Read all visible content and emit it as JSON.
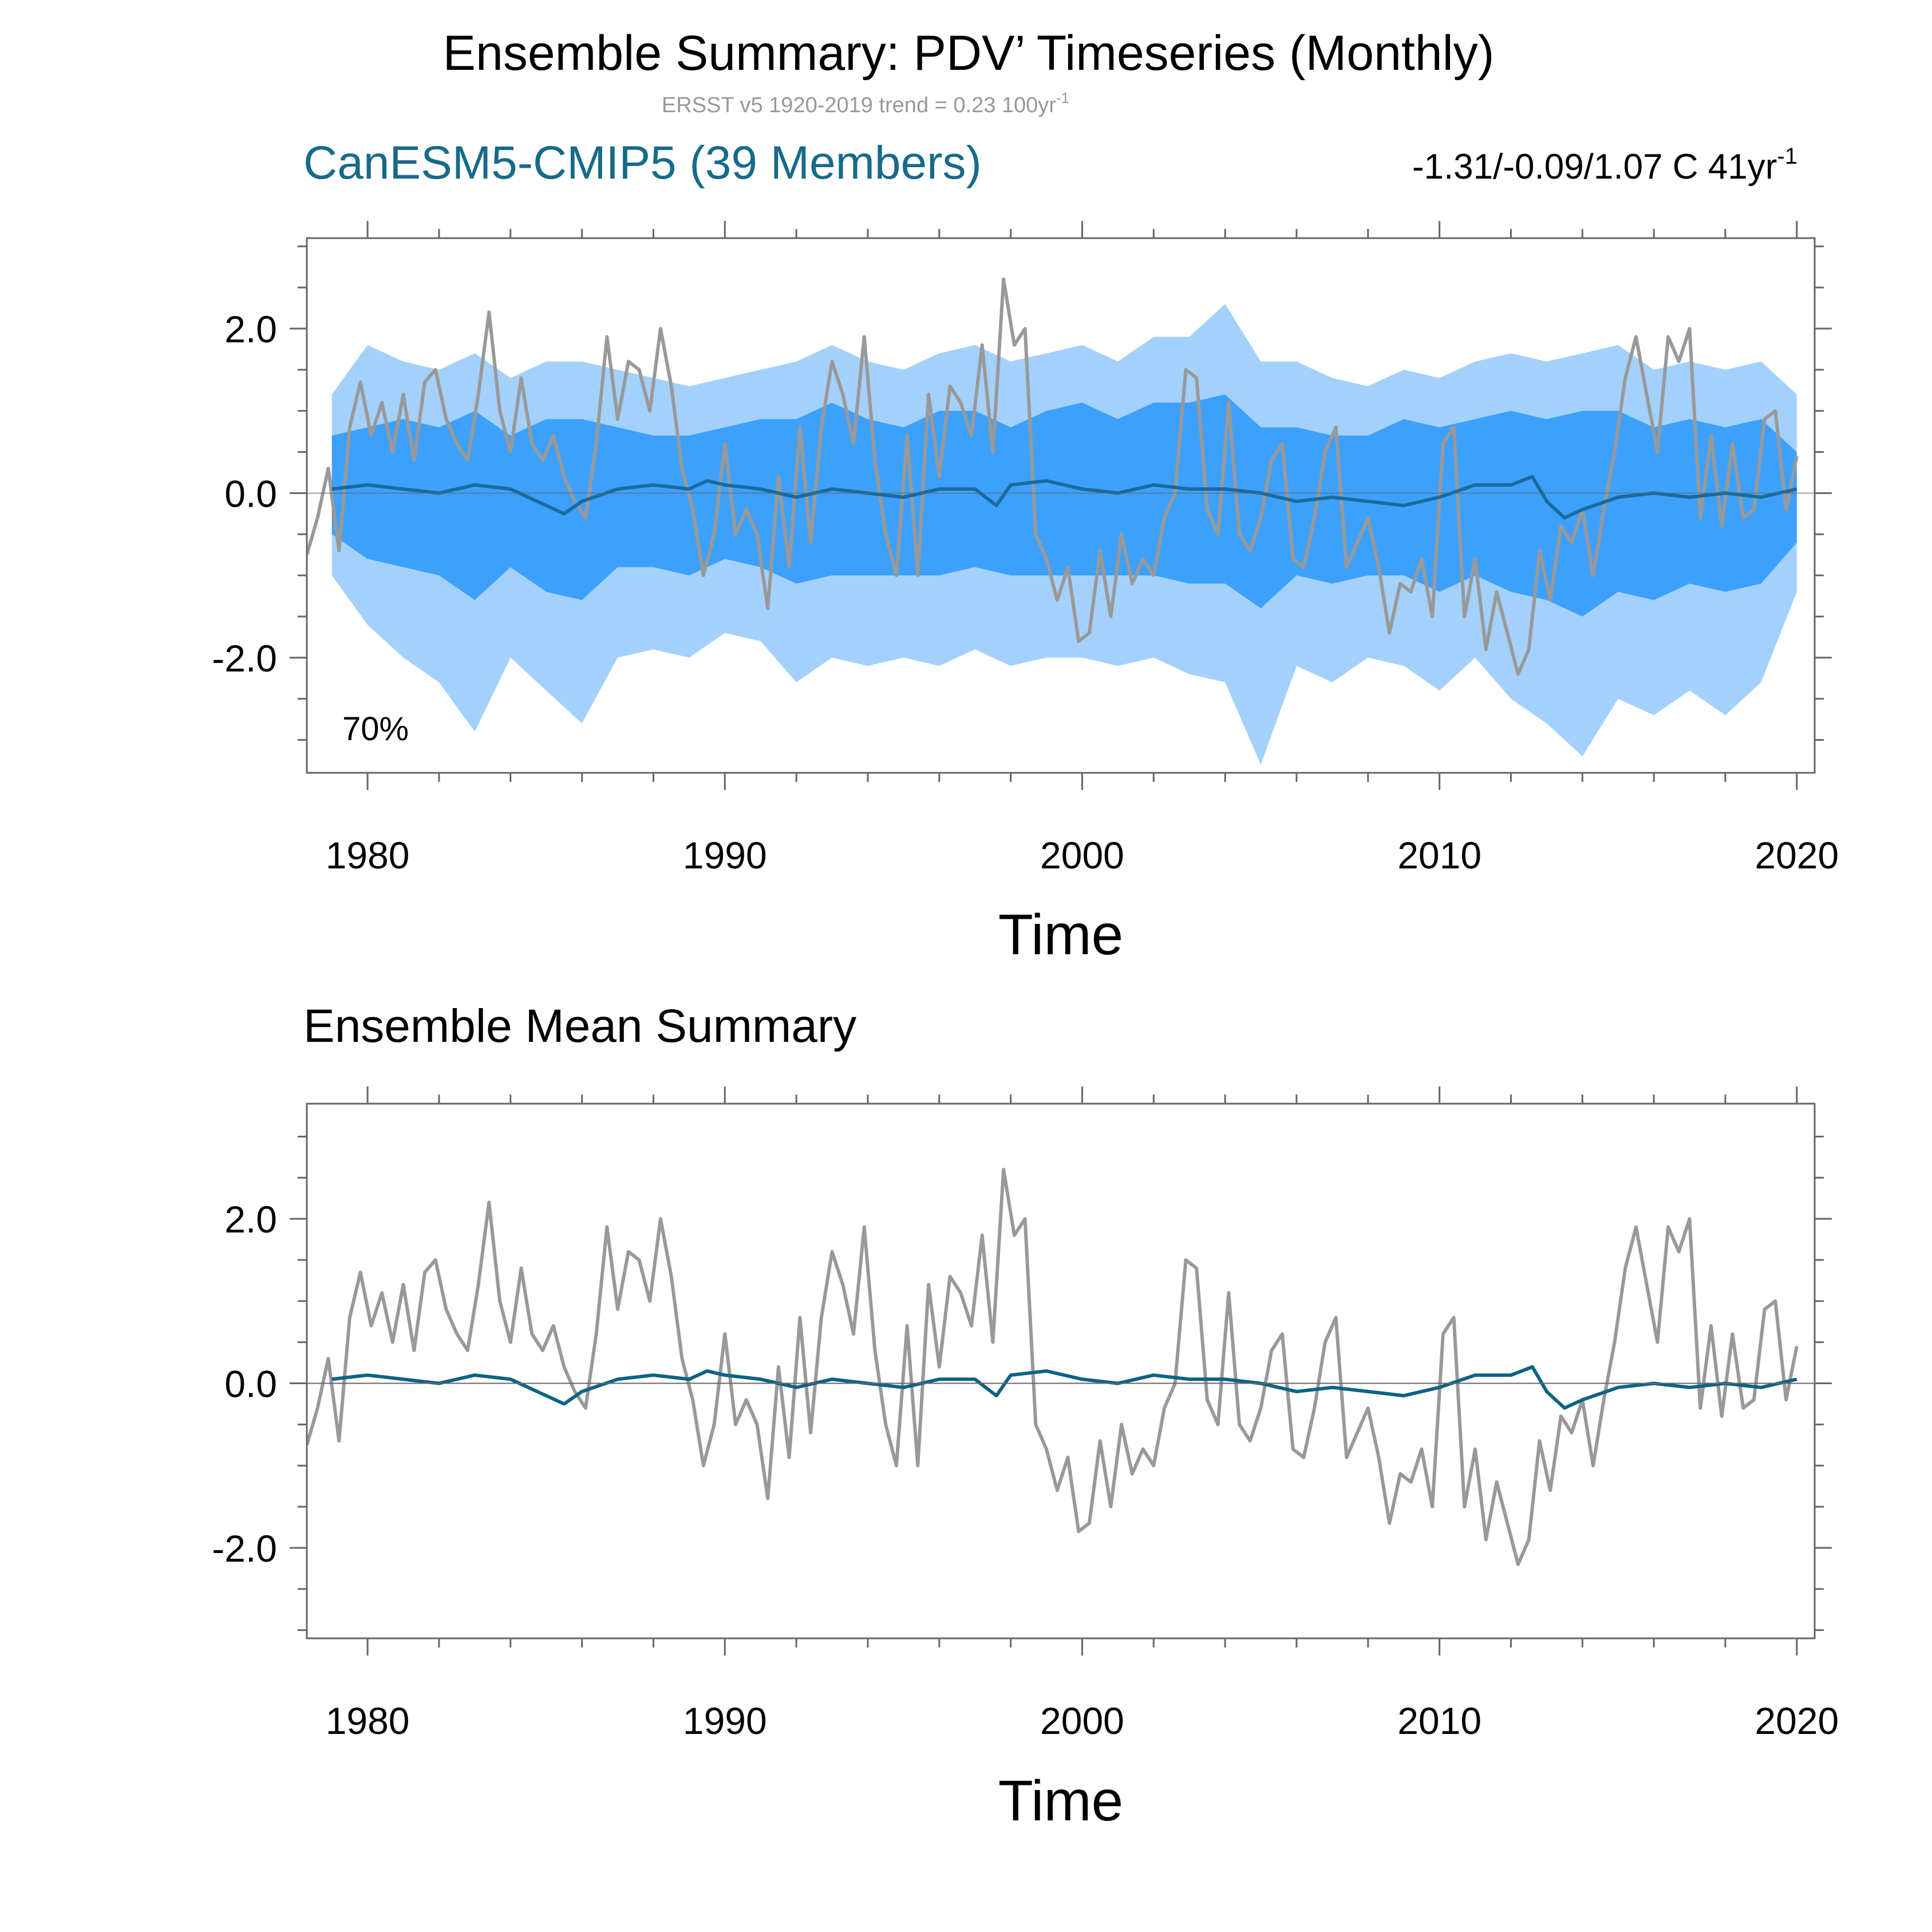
{
  "figure": {
    "main_title": "Ensemble Summary: PDV’ Timeseries (Monthly)",
    "subtitle_prefix": "ERSST v5 1920-2019 trend = 0.23 100yr",
    "subtitle_superscript": "-1"
  },
  "colors": {
    "observed_line": "#999999",
    "ensemble_mean_line": "#1a6b9e",
    "ensemble_mean_summary_line": "#0d6383",
    "band_outer": "#a3d1fb",
    "band_inner": "#3da1fb",
    "model_title": "#176a8a",
    "axis": "#666666",
    "text": "#000000",
    "subtitle": "#999999"
  },
  "chart_data": [
    {
      "type": "area",
      "panel": "top",
      "title": "CanESM5-CMIP5 (39 Members)",
      "trend_text_prefix": "-1.31/-0.09/1.07 C 41yr",
      "trend_text_superscript": "-1",
      "annotation": "70%",
      "xlabel": "Time",
      "ylabel": "",
      "xlim": [
        1978.3,
        2020.5
      ],
      "ylim": [
        -3.4,
        3.1
      ],
      "x_ticks": [
        1980,
        1990,
        2000,
        2010,
        2020
      ],
      "x_tick_labels": [
        "1980",
        "1990",
        "2000",
        "2010",
        "2020"
      ],
      "y_ticks": [
        -2.0,
        0.0,
        2.0
      ],
      "y_tick_labels": [
        "-2.0",
        "0.0",
        "2.0"
      ],
      "series": [
        {
          "name": "observed_ersst",
          "style": "line"
        },
        {
          "name": "ensemble_mean",
          "style": "line"
        },
        {
          "name": "ensemble_full_range",
          "style": "band"
        },
        {
          "name": "ensemble_70pct_range",
          "style": "band"
        }
      ]
    },
    {
      "type": "line",
      "panel": "bottom",
      "title": "Ensemble Mean Summary",
      "xlabel": "Time",
      "ylabel": "",
      "xlim": [
        1978.3,
        2020.5
      ],
      "ylim": [
        -3.1,
        3.4
      ],
      "x_ticks": [
        1980,
        1990,
        2000,
        2010,
        2020
      ],
      "x_tick_labels": [
        "1980",
        "1990",
        "2000",
        "2010",
        "2020"
      ],
      "y_ticks": [
        -2.0,
        0.0,
        2.0
      ],
      "y_tick_labels": [
        "-2.0",
        "0.0",
        "2.0"
      ],
      "series": [
        {
          "name": "observed_ersst",
          "style": "line"
        },
        {
          "name": "ensemble_mean",
          "style": "line"
        }
      ]
    }
  ],
  "series_data": {
    "observed_ersst": {
      "x": [
        1978.3,
        1978.6,
        1978.9,
        1979.2,
        1979.5,
        1979.8,
        1980.1,
        1980.4,
        1980.7,
        1981.0,
        1981.3,
        1981.6,
        1981.9,
        1982.2,
        1982.5,
        1982.8,
        1983.1,
        1983.4,
        1983.7,
        1984.0,
        1984.3,
        1984.6,
        1984.9,
        1985.2,
        1985.5,
        1985.8,
        1986.1,
        1986.4,
        1986.7,
        1987.0,
        1987.3,
        1987.6,
        1987.9,
        1988.2,
        1988.5,
        1988.8,
        1989.1,
        1989.4,
        1989.7,
        1990.0,
        1990.3,
        1990.6,
        1990.9,
        1991.2,
        1991.5,
        1991.8,
        1992.1,
        1992.4,
        1992.7,
        1993.0,
        1993.3,
        1993.6,
        1993.9,
        1994.2,
        1994.5,
        1994.8,
        1995.1,
        1995.4,
        1995.7,
        1996.0,
        1996.3,
        1996.6,
        1996.9,
        1997.2,
        1997.5,
        1997.8,
        1998.1,
        1998.4,
        1998.7,
        1999.0,
        1999.3,
        1999.6,
        1999.9,
        2000.2,
        2000.5,
        2000.8,
        2001.1,
        2001.4,
        2001.7,
        2002.0,
        2002.3,
        2002.6,
        2002.9,
        2003.2,
        2003.5,
        2003.8,
        2004.1,
        2004.4,
        2004.7,
        2005.0,
        2005.3,
        2005.6,
        2005.9,
        2006.2,
        2006.5,
        2006.8,
        2007.1,
        2007.4,
        2007.7,
        2008.0,
        2008.3,
        2008.6,
        2008.9,
        2009.2,
        2009.5,
        2009.8,
        2010.1,
        2010.4,
        2010.7,
        2011.0,
        2011.3,
        2011.6,
        2011.9,
        2012.2,
        2012.5,
        2012.8,
        2013.1,
        2013.4,
        2013.7,
        2014.0,
        2014.3,
        2014.6,
        2014.9,
        2015.2,
        2015.5,
        2015.8,
        2016.1,
        2016.4,
        2016.7,
        2017.0,
        2017.3,
        2017.6,
        2017.9,
        2018.2,
        2018.5,
        2018.8,
        2019.1,
        2019.4,
        2019.7,
        2020.0
      ],
      "y": [
        -0.75,
        -0.3,
        0.3,
        -0.7,
        0.8,
        1.35,
        0.7,
        1.1,
        0.5,
        1.2,
        0.4,
        1.35,
        1.5,
        0.9,
        0.6,
        0.4,
        1.2,
        2.2,
        1.0,
        0.5,
        1.4,
        0.6,
        0.4,
        0.7,
        0.2,
        -0.1,
        -0.3,
        0.6,
        1.9,
        0.9,
        1.6,
        1.5,
        1.0,
        2.0,
        1.3,
        0.3,
        -0.2,
        -1.0,
        -0.5,
        0.6,
        -0.5,
        -0.2,
        -0.5,
        -1.4,
        0.2,
        -0.9,
        0.8,
        -0.6,
        0.8,
        1.6,
        1.2,
        0.6,
        1.9,
        0.4,
        -0.5,
        -1.0,
        0.7,
        -1.0,
        1.2,
        0.2,
        1.3,
        1.1,
        0.7,
        1.8,
        0.5,
        2.6,
        1.8,
        2.0,
        -0.5,
        -0.8,
        -1.3,
        -0.9,
        -1.8,
        -1.7,
        -0.7,
        -1.5,
        -0.5,
        -1.1,
        -0.8,
        -1.0,
        -0.3,
        0.0,
        1.5,
        1.4,
        -0.2,
        -0.5,
        1.1,
        -0.5,
        -0.7,
        -0.3,
        0.4,
        0.6,
        -0.8,
        -0.9,
        -0.3,
        0.5,
        0.8,
        -0.9,
        -0.6,
        -0.3,
        -0.9,
        -1.7,
        -1.1,
        -1.2,
        -0.8,
        -1.5,
        0.6,
        0.8,
        -1.5,
        -0.8,
        -1.9,
        -1.2,
        -1.7,
        -2.2,
        -1.9,
        -0.7,
        -1.3,
        -0.4,
        -0.6,
        -0.2,
        -1.0,
        -0.2,
        0.5,
        1.4,
        1.9,
        1.2,
        0.5,
        1.9,
        1.6,
        2.0,
        -0.3,
        0.7,
        -0.4,
        0.6,
        -0.3,
        -0.2,
        0.9,
        1.0,
        -0.2,
        0.45
      ],
      "description_note": "approximate monthly values at ~0.3 yr spacing"
    },
    "ensemble_mean": {
      "x": [
        1979.0,
        1980.0,
        1981.0,
        1982.0,
        1983.0,
        1984.0,
        1985.0,
        1985.5,
        1986.0,
        1987.0,
        1988.0,
        1989.0,
        1989.5,
        1990.0,
        1991.0,
        1992.0,
        1993.0,
        1994.0,
        1995.0,
        1996.0,
        1997.0,
        1997.6,
        1998.0,
        1999.0,
        2000.0,
        2001.0,
        2002.0,
        2003.0,
        2004.0,
        2005.0,
        2006.0,
        2007.0,
        2008.0,
        2009.0,
        2010.0,
        2011.0,
        2012.0,
        2012.6,
        2013.0,
        2013.5,
        2014.0,
        2015.0,
        2016.0,
        2017.0,
        2018.0,
        2019.0,
        2020.0
      ],
      "y": [
        0.05,
        0.1,
        0.05,
        0.0,
        0.1,
        0.05,
        -0.15,
        -0.25,
        -0.1,
        0.05,
        0.1,
        0.05,
        0.15,
        0.1,
        0.05,
        -0.05,
        0.05,
        0.0,
        -0.05,
        0.05,
        0.05,
        -0.15,
        0.1,
        0.15,
        0.05,
        0.0,
        0.1,
        0.05,
        0.05,
        0.0,
        -0.1,
        -0.05,
        -0.1,
        -0.15,
        -0.05,
        0.1,
        0.1,
        0.2,
        -0.1,
        -0.3,
        -0.2,
        -0.05,
        0.0,
        -0.05,
        0.0,
        -0.05,
        0.05
      ]
    },
    "ensemble_full_range": {
      "x": [
        1979.0,
        1980.0,
        1981.0,
        1982.0,
        1983.0,
        1984.0,
        1985.0,
        1986.0,
        1987.0,
        1988.0,
        1989.0,
        1990.0,
        1991.0,
        1992.0,
        1993.0,
        1994.0,
        1995.0,
        1996.0,
        1997.0,
        1998.0,
        1999.0,
        2000.0,
        2001.0,
        2002.0,
        2003.0,
        2004.0,
        2005.0,
        2006.0,
        2007.0,
        2008.0,
        2009.0,
        2010.0,
        2011.0,
        2012.0,
        2013.0,
        2014.0,
        2015.0,
        2016.0,
        2017.0,
        2018.0,
        2019.0,
        2020.0
      ],
      "upper": [
        1.2,
        1.8,
        1.6,
        1.5,
        1.7,
        1.4,
        1.6,
        1.6,
        1.5,
        1.4,
        1.3,
        1.4,
        1.5,
        1.6,
        1.8,
        1.6,
        1.5,
        1.7,
        1.8,
        1.6,
        1.7,
        1.8,
        1.6,
        1.9,
        1.9,
        2.3,
        1.6,
        1.6,
        1.4,
        1.3,
        1.5,
        1.4,
        1.6,
        1.7,
        1.6,
        1.7,
        1.8,
        1.5,
        1.6,
        1.5,
        1.6,
        1.2
      ],
      "lower": [
        -1.0,
        -1.6,
        -2.0,
        -2.3,
        -2.9,
        -2.0,
        -2.4,
        -2.8,
        -2.0,
        -1.9,
        -2.0,
        -1.7,
        -1.8,
        -2.3,
        -2.0,
        -2.1,
        -2.0,
        -2.1,
        -1.9,
        -2.1,
        -2.0,
        -2.0,
        -2.1,
        -2.0,
        -2.2,
        -2.3,
        -3.3,
        -2.1,
        -2.3,
        -2.0,
        -2.1,
        -2.4,
        -2.0,
        -2.5,
        -2.8,
        -3.2,
        -2.5,
        -2.7,
        -2.4,
        -2.7,
        -2.3,
        -1.2
      ]
    },
    "ensemble_70pct_range": {
      "x": [
        1979.0,
        1980.0,
        1981.0,
        1982.0,
        1983.0,
        1984.0,
        1985.0,
        1986.0,
        1987.0,
        1988.0,
        1989.0,
        1990.0,
        1991.0,
        1992.0,
        1993.0,
        1994.0,
        1995.0,
        1996.0,
        1997.0,
        1998.0,
        1999.0,
        2000.0,
        2001.0,
        2002.0,
        2003.0,
        2004.0,
        2005.0,
        2006.0,
        2007.0,
        2008.0,
        2009.0,
        2010.0,
        2011.0,
        2012.0,
        2013.0,
        2014.0,
        2015.0,
        2016.0,
        2017.0,
        2018.0,
        2019.0,
        2020.0
      ],
      "upper": [
        0.7,
        0.8,
        0.9,
        0.8,
        1.0,
        0.7,
        0.9,
        0.9,
        0.8,
        0.7,
        0.7,
        0.8,
        0.9,
        0.9,
        1.1,
        0.9,
        0.8,
        1.0,
        1.0,
        0.8,
        1.0,
        1.1,
        0.9,
        1.1,
        1.1,
        1.2,
        0.8,
        0.8,
        0.7,
        0.7,
        0.9,
        0.8,
        0.9,
        1.0,
        0.9,
        1.0,
        1.0,
        0.8,
        0.9,
        0.8,
        0.9,
        0.5
      ],
      "lower": [
        -0.5,
        -0.8,
        -0.9,
        -1.0,
        -1.3,
        -0.9,
        -1.2,
        -1.3,
        -0.9,
        -0.9,
        -1.0,
        -0.8,
        -0.9,
        -1.1,
        -1.0,
        -1.0,
        -1.0,
        -1.0,
        -0.9,
        -1.0,
        -1.0,
        -1.0,
        -1.0,
        -1.0,
        -1.1,
        -1.1,
        -1.4,
        -1.0,
        -1.1,
        -1.0,
        -1.0,
        -1.2,
        -1.0,
        -1.2,
        -1.3,
        -1.5,
        -1.2,
        -1.3,
        -1.1,
        -1.2,
        -1.1,
        -0.6
      ]
    }
  }
}
